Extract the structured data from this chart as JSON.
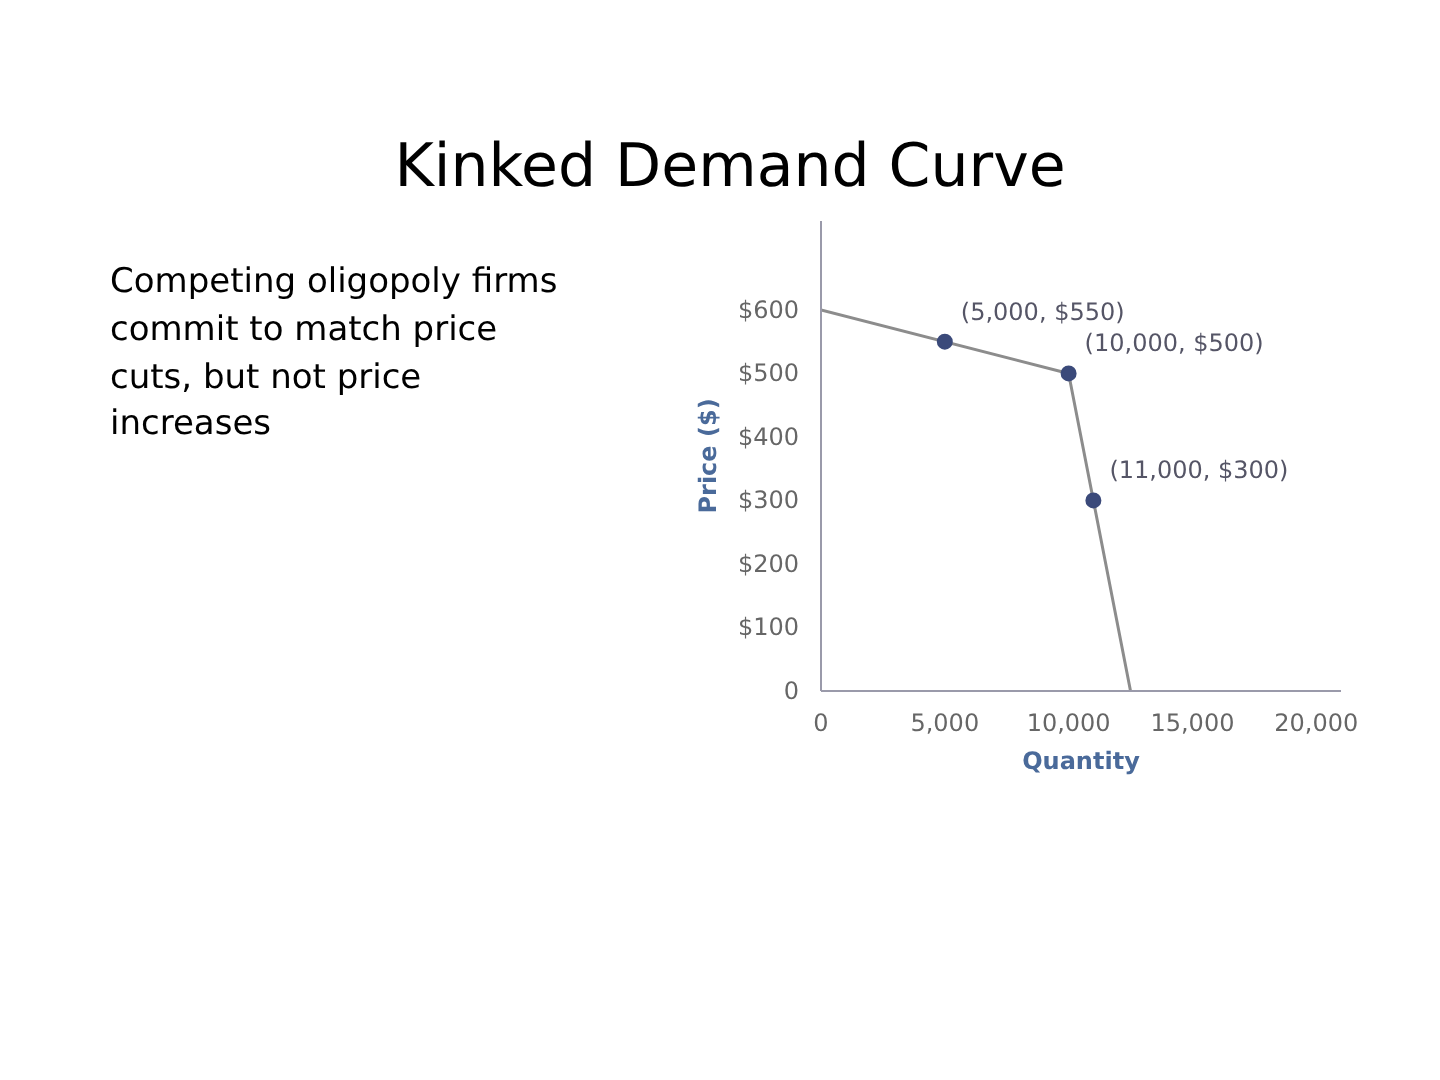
{
  "chart_data": {
    "type": "line",
    "title": "Kinked Demand Curve",
    "subtitle": "Competing oligopoly firms commit to match price cuts, but not price increases",
    "xlabel": "Quantity",
    "ylabel": "Price ($)",
    "series": [
      {
        "color": "#8c8c8c",
        "x": [
          0,
          10000,
          12500
        ],
        "values": [
          600,
          500,
          0
        ]
      },
      {
        "type": "scatter",
        "marker": "circle",
        "color": "#3b4a7a",
        "x": [
          5000,
          10000,
          11000
        ],
        "values": [
          550,
          500,
          300
        ]
      }
    ],
    "xlim": [
      0,
      21000
    ],
    "ylim": [
      0,
      740
    ],
    "xticks": [
      0,
      {
        "value": 5000,
        "label": "5,000"
      },
      {
        "value": 10000,
        "label": "10,000"
      },
      {
        "value": 15000,
        "label": "15,000"
      },
      {
        "value": 20000,
        "label": "20,000"
      }
    ],
    "yticks": [
      0,
      {
        "value": 100,
        "label": "$100"
      },
      {
        "value": 200,
        "label": "$200"
      },
      {
        "value": 300,
        "label": "$300"
      },
      {
        "value": 400,
        "label": "$400"
      },
      {
        "value": 500,
        "label": "$500"
      },
      {
        "value": 600,
        "label": "$600"
      }
    ],
    "annotations": [
      {
        "text": "(5,000, $550)",
        "x": 5000,
        "y": 550
      },
      {
        "text": "(10,000, $500)",
        "x": 10000,
        "y": 500
      },
      {
        "text": "(11,000, $300)",
        "x": 11000,
        "y": 300
      }
    ],
    "grid": false
  }
}
